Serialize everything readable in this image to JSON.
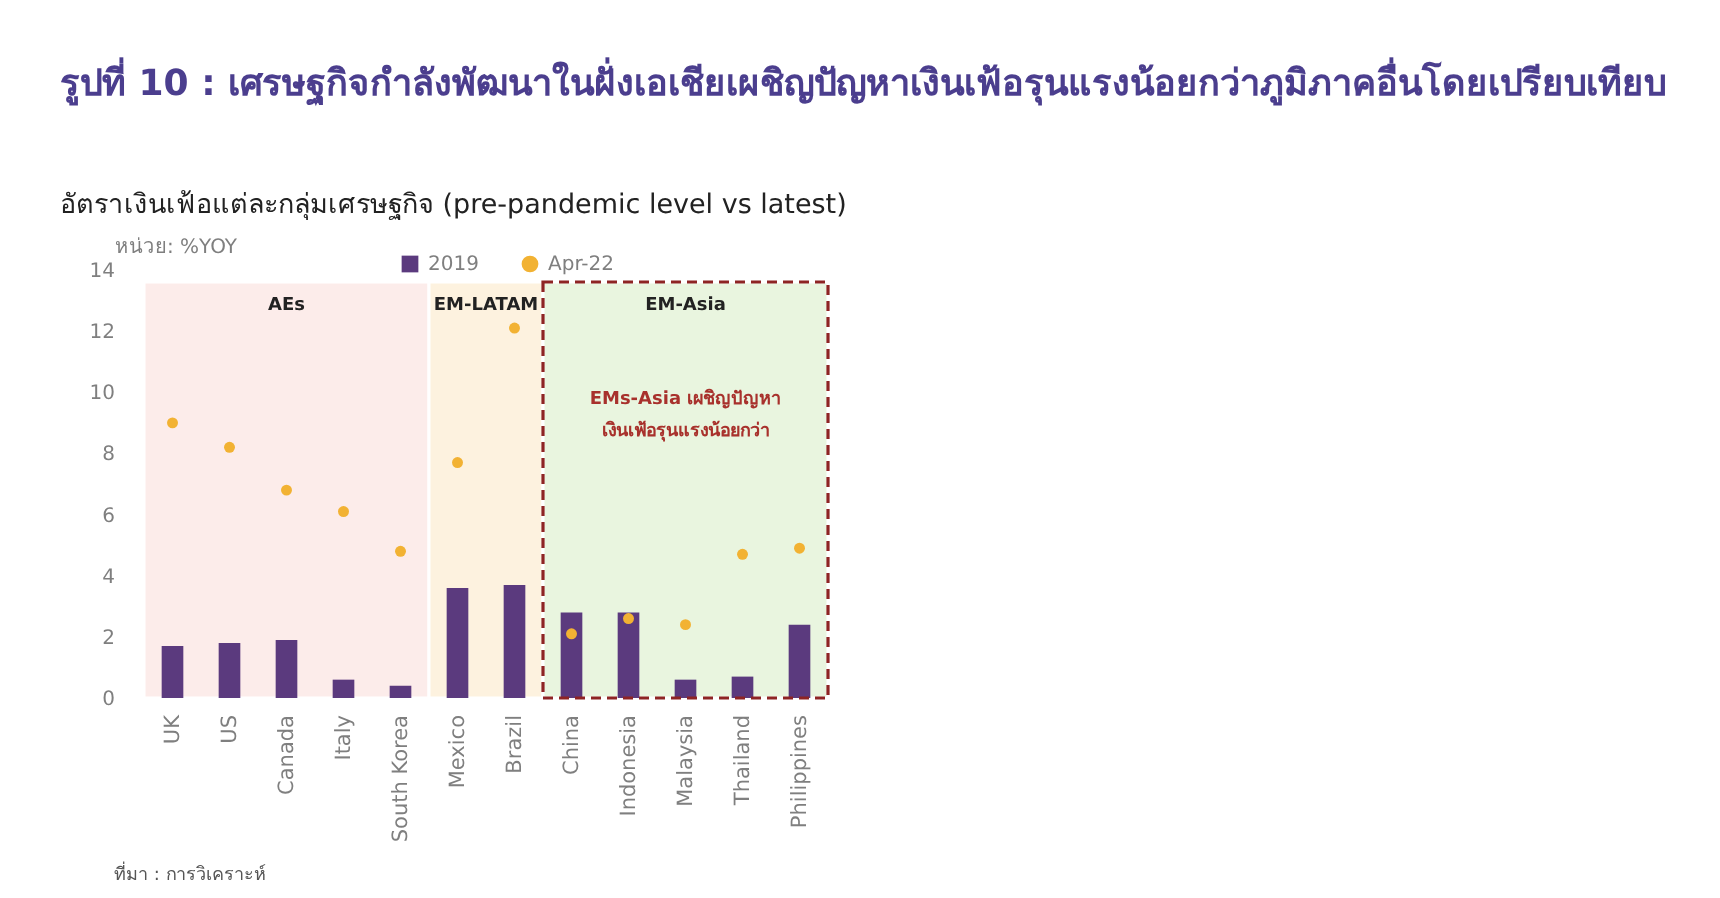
{
  "chart_data": {
    "type": "bar",
    "title": "รูปที่ 10 : เศรษฐกิจกำลังพัฒนาในฝั่งเอเชียเผชิญปัญหาเงินเฟ้อรุนแรงน้อยกว่าภูมิภาคอื่นโดยเปรียบเทียบ",
    "subtitle": "อัตราเงินเฟ้อแต่ละกลุ่มเศรษฐกิจ (pre-pandemic level vs latest)",
    "ylabel": "หน่วย: %YOY",
    "categories": [
      "UK",
      "US",
      "Canada",
      "Italy",
      "South Korea",
      "Mexico",
      "Brazil",
      "China",
      "Indonesia",
      "Malaysia",
      "Thailand",
      "Philippines"
    ],
    "series": [
      {
        "name": "2019",
        "color": "#5b3a7e",
        "values": [
          1.7,
          1.8,
          1.9,
          0.6,
          0.4,
          3.6,
          3.7,
          2.8,
          2.8,
          0.6,
          0.7,
          2.4
        ]
      },
      {
        "name": "Apr-22",
        "type": "scatter",
        "color": "#f2b233",
        "values": [
          9.0,
          8.2,
          6.8,
          6.1,
          4.8,
          7.7,
          12.1,
          2.1,
          2.6,
          2.4,
          4.7,
          4.9
        ]
      }
    ],
    "ylim": [
      0,
      14
    ],
    "yticks": [
      0,
      2,
      4,
      6,
      8,
      10,
      12,
      14
    ],
    "legend": "top",
    "marker": "circle",
    "bands": [
      {
        "axis": "x",
        "from": "UK",
        "to": "South Korea",
        "label": "AEs",
        "color": "#fcecea"
      },
      {
        "axis": "x",
        "from": "Mexico",
        "to": "Brazil",
        "label": "EM-LATAM",
        "color": "#fdf2df"
      },
      {
        "axis": "x",
        "from": "China",
        "to": "Philippines",
        "label": "EM-Asia",
        "color": "#e9f5df"
      }
    ],
    "annotations": [
      "EMs-Asia เผชิญปัญหา\nเงินเฟ้อรุนแรงน้อยกว่า",
      "ที่มา : การวิเคราะห์"
    ]
  }
}
